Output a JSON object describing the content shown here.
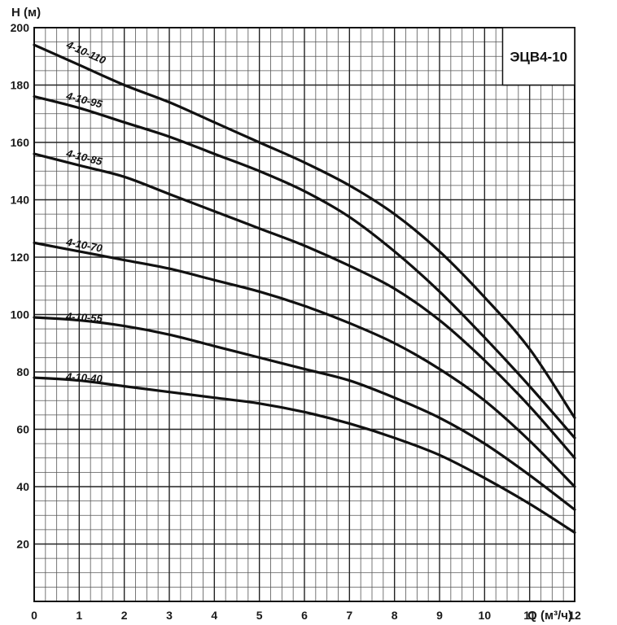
{
  "chart_data": {
    "type": "line",
    "title": "ЭЦВ4-10",
    "xlabel": "Q (м³/ч)",
    "ylabel": "H (м)",
    "xlim": [
      0,
      12
    ],
    "ylim": [
      0,
      200
    ],
    "x_ticks": [
      "0",
      "1",
      "2",
      "3",
      "4",
      "5",
      "6",
      "7",
      "8",
      "9",
      "10",
      "11",
      "12"
    ],
    "y_ticks": [
      "20",
      "40",
      "60",
      "80",
      "100",
      "120",
      "140",
      "160",
      "180",
      "200"
    ],
    "grid": true,
    "series": [
      {
        "name": "4-10-110",
        "x": [
          0,
          1,
          2,
          3,
          4,
          5,
          6,
          7,
          8,
          9,
          10,
          11,
          12
        ],
        "y": [
          194,
          187,
          180,
          174,
          167,
          160,
          153,
          145,
          135,
          122,
          106,
          88,
          64
        ]
      },
      {
        "name": "4-10-95",
        "x": [
          0,
          1,
          2,
          3,
          4,
          5,
          6,
          7,
          8,
          9,
          10,
          11,
          12
        ],
        "y": [
          176,
          172,
          167,
          162,
          156,
          150,
          143,
          134,
          122,
          108,
          92,
          75,
          57
        ]
      },
      {
        "name": "4-10-85",
        "x": [
          0,
          1,
          2,
          3,
          4,
          5,
          6,
          7,
          8,
          9,
          10,
          11,
          12
        ],
        "y": [
          156,
          152,
          148,
          142,
          136,
          130,
          124,
          117,
          109,
          98,
          84,
          68,
          50
        ]
      },
      {
        "name": "4-10-70",
        "x": [
          0,
          1,
          2,
          3,
          4,
          5,
          6,
          7,
          8,
          9,
          10,
          11,
          12
        ],
        "y": [
          125,
          122,
          119,
          116,
          112,
          108,
          103,
          97,
          90,
          81,
          70,
          56,
          40
        ]
      },
      {
        "name": "4-10-55",
        "x": [
          0,
          1,
          2,
          3,
          4,
          5,
          6,
          7,
          8,
          9,
          10,
          11,
          12
        ],
        "y": [
          99,
          98,
          96,
          93,
          89,
          85,
          81,
          77,
          71,
          64,
          55,
          44,
          32
        ]
      },
      {
        "name": "4-10-40",
        "x": [
          0,
          1,
          2,
          3,
          4,
          5,
          6,
          7,
          8,
          9,
          10,
          11,
          12
        ],
        "y": [
          78,
          77,
          75,
          73,
          71,
          69,
          66,
          62,
          57,
          51,
          43,
          34,
          24
        ]
      }
    ]
  }
}
